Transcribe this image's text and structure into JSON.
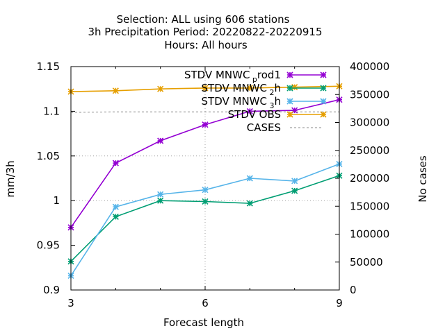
{
  "title_lines": [
    "Selection: ALL using   606 stations",
    "3h Precipitation   Period: 20220822-20220915",
    "Hours:  All hours"
  ],
  "chart_data": {
    "type": "line",
    "xlabel": "Forecast length",
    "ylabel": "mm/3h",
    "y2label": "No cases",
    "xlim": [
      3,
      9
    ],
    "ylim": [
      0.9,
      1.15
    ],
    "y2lim": [
      0,
      400000
    ],
    "x_ticks": [
      "3",
      "6",
      "9"
    ],
    "y_ticks": [
      "0.9",
      "0.95",
      "1",
      "1.05",
      "1.1",
      "1.15"
    ],
    "y2_ticks": [
      "0",
      "50000",
      "100000",
      "150000",
      "200000",
      "250000",
      "300000",
      "350000",
      "400000"
    ],
    "grid": "vertical at x=6, horizontal at y=1.05 and y=1.0, dotted",
    "legend_position": "top-right",
    "x": [
      3,
      4,
      5,
      6,
      7,
      8,
      9
    ],
    "series": [
      {
        "name": "STDV MNWC_prod1",
        "label_main": "STDV MNWC",
        "label_sub": "p",
        "label_rest": "rod1",
        "color": "#9400d3",
        "axis": "y",
        "values": [
          0.97,
          1.042,
          1.067,
          1.085,
          1.1,
          1.101,
          1.113
        ]
      },
      {
        "name": "STDV MNWC_2h",
        "label_main": "STDV MNWC",
        "label_sub": "2",
        "label_rest": "h",
        "color": "#009e73",
        "axis": "y",
        "values": [
          0.932,
          0.982,
          1.0,
          0.999,
          0.997,
          1.011,
          1.028
        ]
      },
      {
        "name": "STDV MNWC_3h",
        "label_main": "STDV MNWC",
        "label_sub": "3",
        "label_rest": "h",
        "color": "#56b4e9",
        "axis": "y",
        "values": [
          0.916,
          0.993,
          1.007,
          1.012,
          1.025,
          1.022,
          1.041
        ]
      },
      {
        "name": "STDV OBS",
        "label_main": "STDV OBS",
        "label_sub": "",
        "label_rest": "",
        "color": "#e69f00",
        "axis": "y",
        "values": [
          1.122,
          1.123,
          1.125,
          1.126,
          1.126,
          1.127,
          1.128
        ]
      },
      {
        "name": "CASES",
        "label_main": "CASES",
        "label_sub": "",
        "label_rest": "",
        "color": "#888888",
        "axis": "y2",
        "dashed": true,
        "values": [
          318000,
          319000,
          319000,
          319000,
          319000,
          319000,
          319000
        ]
      }
    ]
  }
}
